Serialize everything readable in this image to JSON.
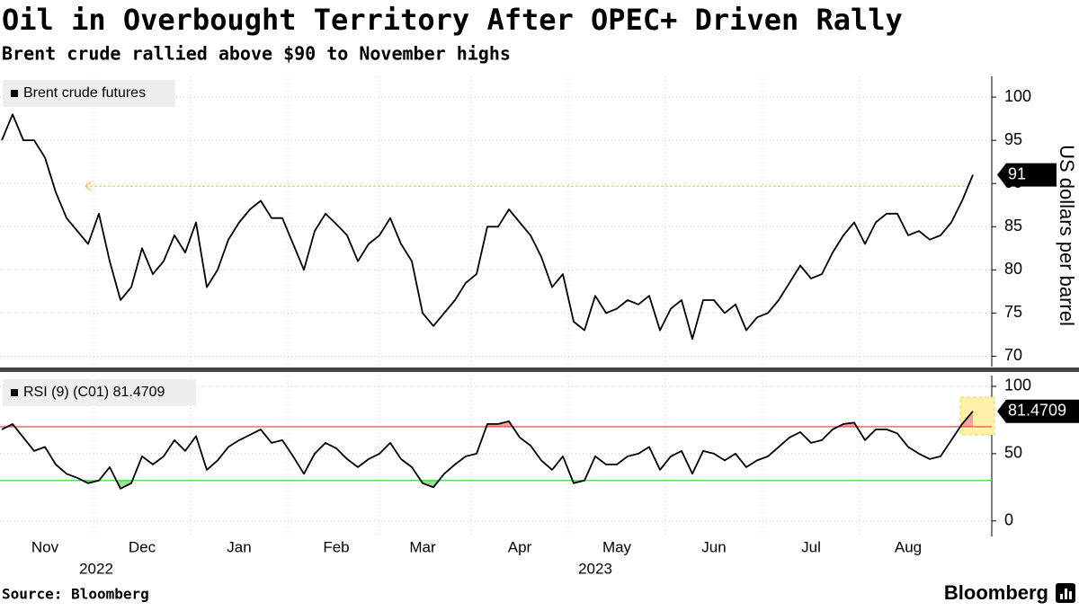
{
  "source": "Source: Bloomberg",
  "brand": "Bloomberg",
  "chart_data": [
    {
      "type": "line",
      "title": "Oil in Overbought Territory After OPEC+ Driven Rally",
      "subtitle": "Brent crude rallied above $90 to November highs",
      "y_label": "US dollars per barrel",
      "categories": [
        null,
        null,
        null,
        null,
        "Nov",
        null,
        null,
        null,
        null,
        null,
        null,
        null,
        null,
        "Dec",
        null,
        null,
        null,
        null,
        null,
        null,
        null,
        null,
        "Jan",
        null,
        null,
        null,
        null,
        null,
        null,
        null,
        null,
        "Feb",
        null,
        null,
        null,
        null,
        null,
        null,
        null,
        "Mar",
        null,
        null,
        null,
        null,
        null,
        null,
        null,
        null,
        "Apr",
        null,
        null,
        null,
        null,
        null,
        null,
        null,
        null,
        "May",
        null,
        null,
        null,
        null,
        null,
        null,
        null,
        null,
        "Jun",
        null,
        null,
        null,
        null,
        null,
        null,
        null,
        null,
        "Jul",
        null,
        null,
        null,
        null,
        null,
        null,
        null,
        null,
        "Aug",
        null,
        null,
        null,
        null,
        null,
        null
      ],
      "year_labels": [
        "2022",
        "2023"
      ],
      "series": [
        {
          "name": "Brent crude futures",
          "color": "#000000",
          "values": [
            95,
            98,
            95,
            95,
            93,
            89,
            86,
            84.5,
            83,
            86.5,
            81,
            76.5,
            78,
            82.5,
            79.5,
            81,
            84,
            82,
            85.5,
            78,
            80,
            83.5,
            85.5,
            87,
            88,
            86,
            86,
            83,
            80,
            84.5,
            86.5,
            85.3,
            84,
            81,
            83,
            84,
            86,
            83,
            81,
            75,
            73.5,
            75,
            76.5,
            78.5,
            79.5,
            85,
            85,
            87,
            85.5,
            84,
            81.5,
            78,
            79.5,
            74,
            73,
            77,
            75,
            75.5,
            76.5,
            76,
            77,
            73,
            75.5,
            76.5,
            72,
            76.5,
            76.5,
            75,
            76,
            73,
            74.5,
            75,
            76.5,
            78.5,
            80.5,
            79,
            79.5,
            82,
            84,
            85.5,
            83,
            85.5,
            86.5,
            86.5,
            84,
            84.5,
            83.5,
            84,
            85.5,
            88,
            91
          ]
        }
      ],
      "ylim": [
        68.8,
        102.4
      ],
      "yticks": [
        70,
        75,
        80,
        85,
        90,
        95,
        100
      ],
      "grid": true,
      "reference_line": {
        "value": 89.7,
        "color": "#f5b041"
      }
    },
    {
      "type": "line",
      "series": [
        {
          "name": "RSI (9) (C01) 81.4709",
          "color": "#000000",
          "values": [
            68,
            72,
            62,
            52,
            55,
            42,
            35,
            32,
            28,
            30,
            40,
            24,
            28,
            48,
            42,
            48,
            60,
            52,
            63,
            38,
            45,
            55,
            60,
            64,
            68,
            58,
            60,
            48,
            35,
            50,
            58,
            54,
            46,
            40,
            46,
            50,
            58,
            46,
            40,
            28,
            25,
            35,
            42,
            48,
            50,
            72,
            72,
            74,
            62,
            56,
            45,
            38,
            48,
            28,
            30,
            48,
            42,
            42,
            48,
            50,
            55,
            38,
            48,
            52,
            35,
            52,
            50,
            45,
            50,
            40,
            45,
            48,
            55,
            62,
            66,
            58,
            60,
            68,
            72,
            73,
            60,
            68,
            68,
            65,
            55,
            50,
            46,
            48,
            60,
            72,
            81.4709
          ]
        }
      ],
      "ylim": [
        -11.5,
        108
      ],
      "yticks": [
        0,
        50,
        100
      ],
      "grid": true,
      "thresholds": [
        {
          "value": 70,
          "color": "#d9413a",
          "fill": "#f4a3a3"
        },
        {
          "value": 30,
          "color": "#3cc43c",
          "fill": "#9be09b"
        }
      ]
    }
  ]
}
